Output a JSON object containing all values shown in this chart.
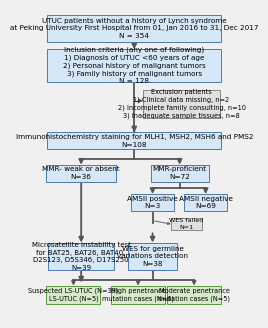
{
  "title": "UTUC patients without a history of Lynch syndrome\nat Peking University First Hospital from 01, Jan 2016 to 31, Dec 2017\nN = 354",
  "box_incl": "Inclusion criteria (any one of following)\n1) Diagnosis of UTUC <60 years of age\n2) Personal history of malignant tumors\n3) Family history of malignant tumors\nN = 128",
  "box_excl": "Exclusion patients\n1) Clinical data missing, n=2\n2) Incomplete family consulting, n=10\n3) Inadequate sample tissues, n=8",
  "box_ihc": "Immunohistochemistry staining for MLH1, MSH2, MSH6 and PMS2\nN=108",
  "box_mmr_weak": "MMR- weak or absent\nN=36",
  "box_mmr_prof": "MMR-proficient\nN=72",
  "box_amsii_pos": "AMSII positive\nN=3",
  "box_amsii_neg": "AMSII negative\nN=69",
  "box_wes_fail": "WES failed\nN=1",
  "box_msi": "Microsatellite instability test\nfor BAT25, BAT26, BAT40,\nD2S123, D5S346, D17S250\nN=39",
  "box_wes": "WES for germline\nvariations detection\nN=38",
  "box_ls": "Suspected LS-UTUC (N=39)\nLS-UTUC (N=5)",
  "box_high": "High penetrance\nmutation cases (N=6)",
  "box_mod": "Moderate penetrance\nmutation cases (N=5)",
  "bg_color": "#f0f0f0",
  "blue_fill": "#d6e8f7",
  "blue_edge": "#4a7ab5",
  "gray_fill": "#e0e0e0",
  "gray_edge": "#888888",
  "green_fill": "#d4eac8",
  "green_edge": "#5a9a40",
  "arrow_color": "#555555",
  "fontsize": 5.2
}
